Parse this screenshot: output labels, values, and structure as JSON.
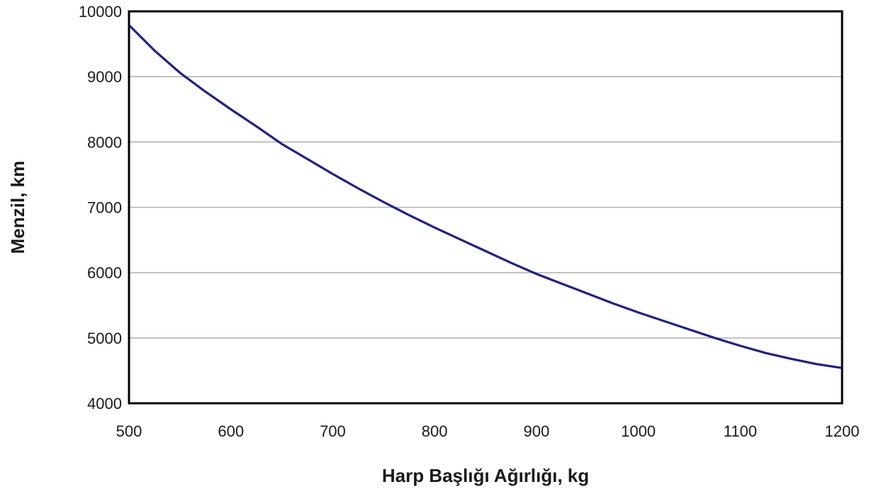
{
  "chart_data": {
    "type": "line",
    "title": "",
    "xlabel": "Harp Başlığı Ağırlığı, kg",
    "ylabel": "Menzil, km",
    "xlim": [
      500,
      1200
    ],
    "ylim": [
      4000,
      10000
    ],
    "xticks": [
      "500",
      "600",
      "700",
      "800",
      "900",
      "1000",
      "1100",
      "1200"
    ],
    "yticks": [
      "4000",
      "5000",
      "6000",
      "7000",
      "8000",
      "9000",
      "10000"
    ],
    "grid": "horizontal",
    "legend": "none",
    "series": [
      {
        "color": "#1f1f8f",
        "x": [
          500,
          525,
          550,
          575,
          600,
          625,
          650,
          675,
          700,
          725,
          750,
          775,
          800,
          825,
          850,
          875,
          900,
          925,
          950,
          975,
          1000,
          1025,
          1050,
          1075,
          1100,
          1125,
          1150,
          1175,
          1200
        ],
        "y": [
          9790,
          9400,
          9060,
          8770,
          8500,
          8240,
          7970,
          7740,
          7510,
          7290,
          7080,
          6880,
          6690,
          6510,
          6330,
          6150,
          5980,
          5830,
          5680,
          5530,
          5390,
          5260,
          5130,
          5000,
          4880,
          4770,
          4680,
          4600,
          4540
        ]
      }
    ]
  }
}
